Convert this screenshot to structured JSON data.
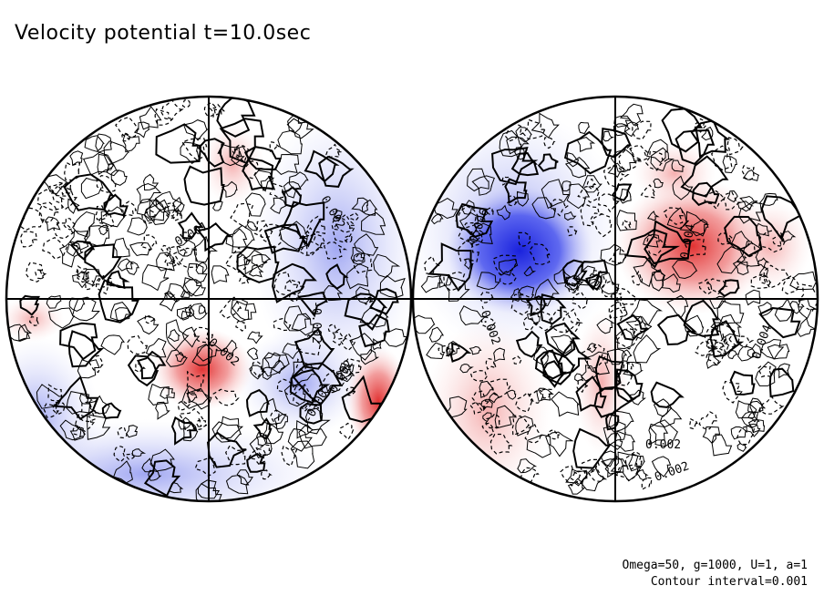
{
  "title": "Velocity potential t=10.0sec",
  "params": {
    "line1": "Omega=50, g=1000, U=1, a=1",
    "line2": "Contour interval=0.001"
  },
  "colors": {
    "negative": "#2233dd",
    "positive": "#dd2222",
    "line": "#000000",
    "background": "#ffffff"
  },
  "left_hemisphere": {
    "contour_labels": [
      "0.002",
      "0.001",
      "-0.002",
      "-0.002",
      "0.002",
      "-0.002"
    ]
  },
  "right_hemisphere": {
    "contour_labels": [
      "-0.006",
      "-0.002",
      "0.004",
      "0.002",
      "0.004",
      "0.002"
    ]
  }
}
